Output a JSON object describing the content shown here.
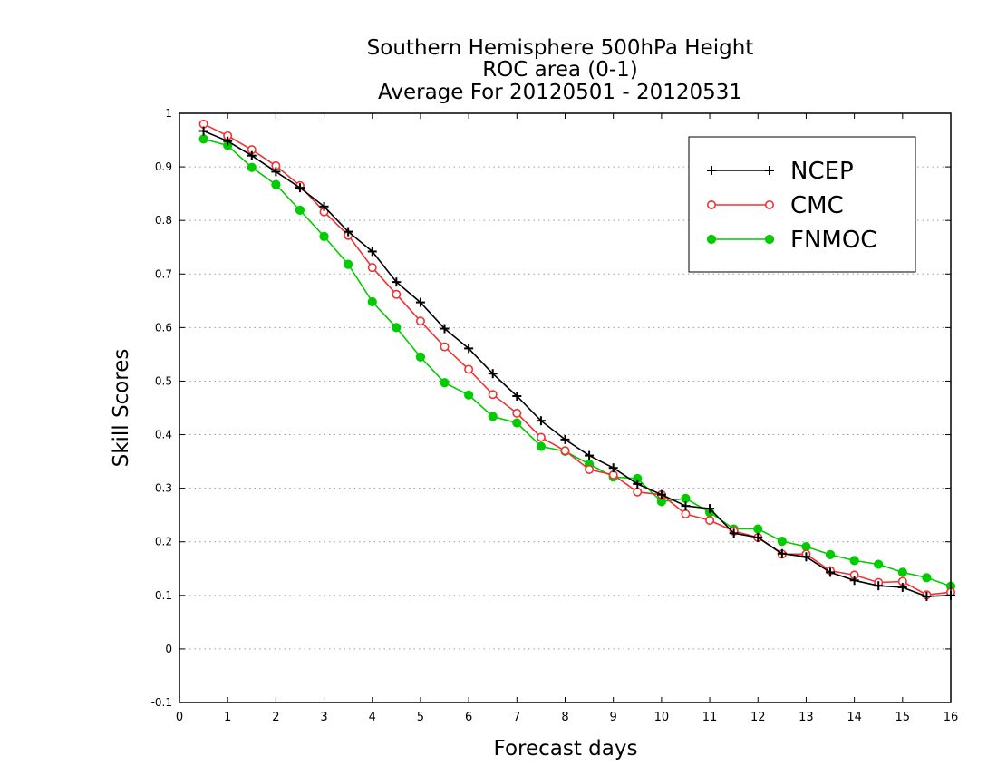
{
  "chart_data": {
    "type": "line",
    "title_lines": [
      "Southern Hemisphere 500hPa Height",
      "ROC area (0-1)",
      "Average For 20120501 - 20120531"
    ],
    "xlabel": "Forecast days",
    "ylabel": "Skill Scores",
    "xlim": [
      0,
      16
    ],
    "ylim": [
      -0.1,
      1
    ],
    "xticks": [
      0,
      1,
      2,
      3,
      4,
      5,
      6,
      7,
      8,
      9,
      10,
      11,
      12,
      13,
      14,
      15,
      16
    ],
    "yticks": [
      -0.1,
      0,
      0.1,
      0.2,
      0.3,
      0.4,
      0.5,
      0.6,
      0.7,
      0.8,
      0.9,
      1
    ],
    "ytick_labels": [
      "-0.1",
      "0",
      "0.1",
      "0.2",
      "0.3",
      "0.4",
      "0.5",
      "0.6",
      "0.7",
      "0.8",
      "0.9",
      "1"
    ],
    "grid": "horizontal dotted",
    "legend_position": "top-right",
    "x": [
      0.5,
      1,
      1.5,
      2,
      2.5,
      3,
      3.5,
      4,
      4.5,
      5,
      5.5,
      6,
      6.5,
      7,
      7.5,
      8,
      8.5,
      9,
      9.5,
      10,
      10.5,
      11,
      11.5,
      12,
      12.5,
      13,
      13.5,
      14,
      14.5,
      15,
      15.5,
      16
    ],
    "series": [
      {
        "name": "NCEP",
        "color": "#000000",
        "marker": "plus",
        "values": [
          0.967,
          0.948,
          0.921,
          0.891,
          0.861,
          0.826,
          0.779,
          0.742,
          0.685,
          0.647,
          0.598,
          0.561,
          0.514,
          0.472,
          0.426,
          0.391,
          0.361,
          0.338,
          0.308,
          0.288,
          0.267,
          0.262,
          0.216,
          0.208,
          0.178,
          0.172,
          0.143,
          0.128,
          0.118,
          0.115,
          0.098,
          0.1
        ]
      },
      {
        "name": "CMC",
        "color": "#ee3333",
        "marker": "open-circle",
        "values": [
          0.98,
          0.958,
          0.932,
          0.902,
          0.865,
          0.816,
          0.772,
          0.712,
          0.662,
          0.612,
          0.564,
          0.522,
          0.475,
          0.44,
          0.395,
          0.37,
          0.335,
          0.325,
          0.293,
          0.288,
          0.252,
          0.24,
          0.22,
          0.208,
          0.177,
          0.177,
          0.146,
          0.138,
          0.124,
          0.126,
          0.101,
          0.106
        ]
      },
      {
        "name": "FNMOC",
        "color": "#00cc00",
        "marker": "filled-circle",
        "values": [
          0.952,
          0.94,
          0.899,
          0.867,
          0.819,
          0.77,
          0.718,
          0.648,
          0.6,
          0.545,
          0.497,
          0.474,
          0.434,
          0.422,
          0.378,
          0.369,
          0.345,
          0.321,
          0.318,
          0.275,
          0.281,
          0.255,
          0.224,
          0.224,
          0.201,
          0.191,
          0.176,
          0.165,
          0.158,
          0.143,
          0.133,
          0.117
        ]
      }
    ]
  }
}
